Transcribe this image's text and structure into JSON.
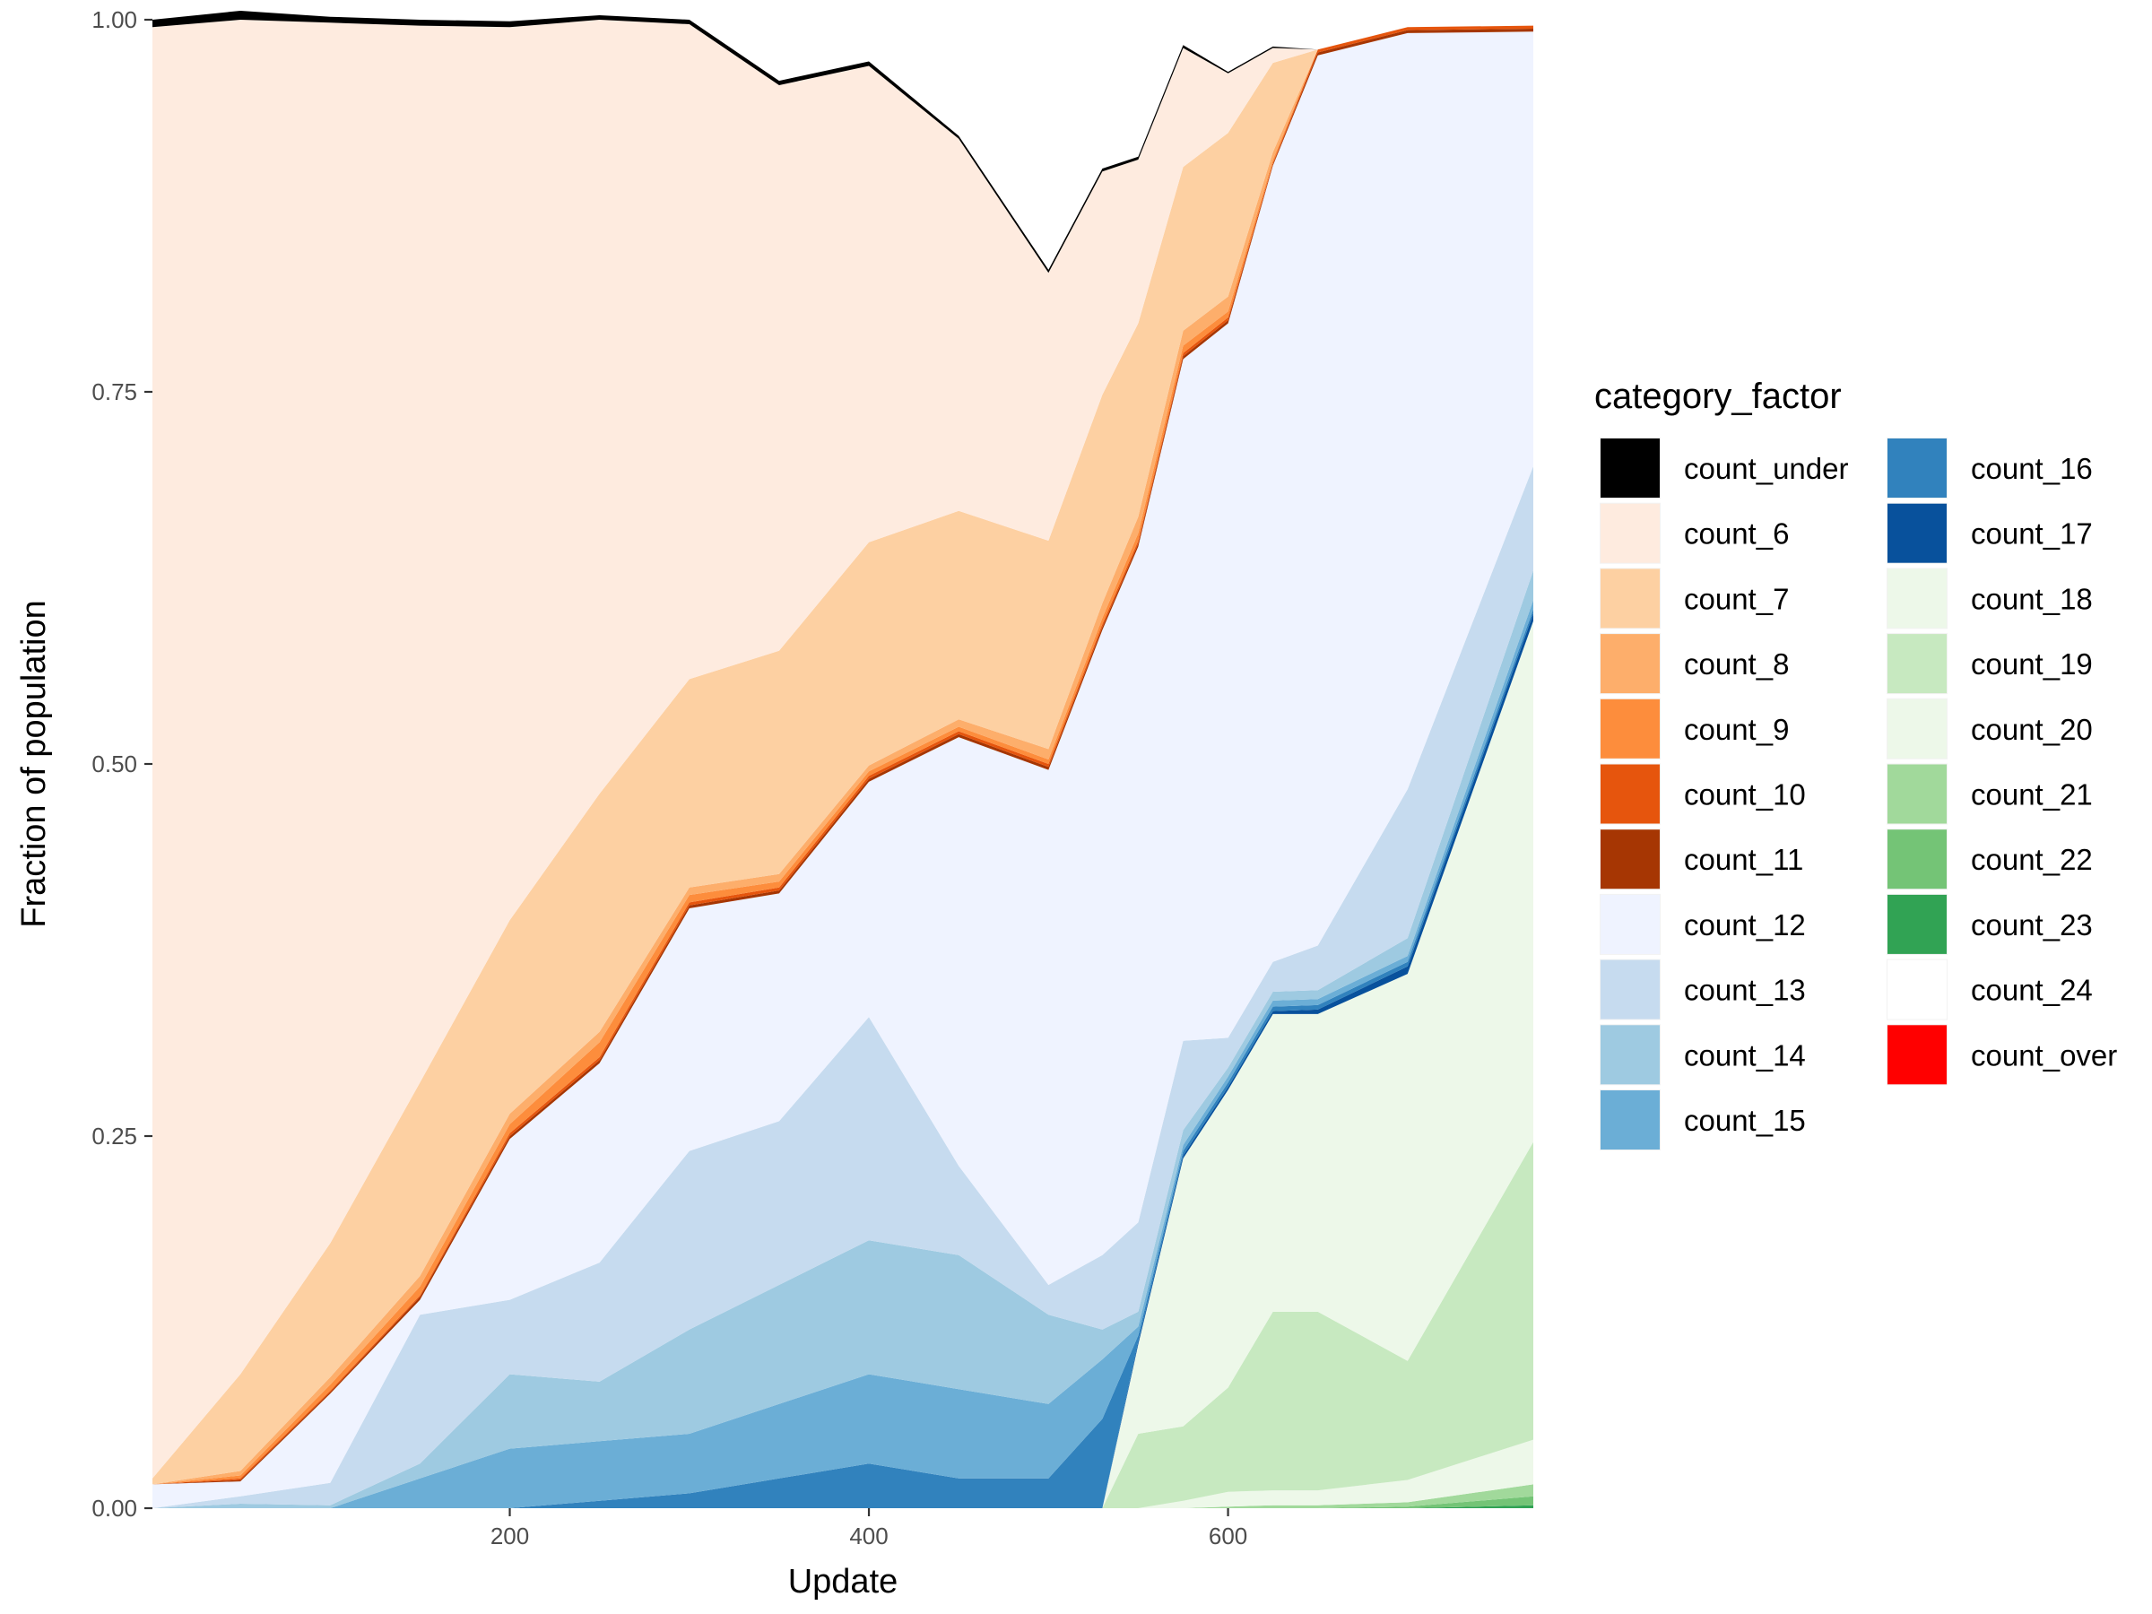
{
  "chart_data": {
    "type": "area",
    "stacked": true,
    "normalized": true,
    "xlabel": "Update",
    "ylabel": "Fraction of population",
    "xlim": [
      1,
      770
    ],
    "ylim": [
      0,
      1
    ],
    "x_ticks": [
      200,
      400,
      600
    ],
    "y_ticks": [
      0.0,
      0.25,
      0.5,
      0.75,
      1.0
    ],
    "y_tick_labels": [
      "0.00",
      "0.25",
      "0.50",
      "0.75",
      "1.00"
    ],
    "grid": false,
    "legend": {
      "title": "category_factor",
      "placement": "right",
      "columns": 2
    },
    "x": [
      1,
      50,
      100,
      150,
      200,
      250,
      300,
      350,
      400,
      450,
      500,
      530,
      550,
      575,
      600,
      625,
      650,
      700,
      770
    ],
    "series": [
      {
        "name": "count_under",
        "color": "#000000",
        "values": [
          0.005,
          0.006,
          0.004,
          0.004,
          0.004,
          0.003,
          0.003,
          0.003,
          0.003,
          0.002,
          0.002,
          0.002,
          0.002,
          0.002,
          0.001,
          0.001,
          0,
          0,
          0
        ]
      },
      {
        "name": "count_6",
        "color": "#FEEBDF",
        "values": [
          0.975,
          0.91,
          0.82,
          0.71,
          0.6,
          0.52,
          0.44,
          0.38,
          0.32,
          0.25,
          0.18,
          0.15,
          0.11,
          0.08,
          0.04,
          0.01,
          0,
          0,
          0
        ]
      },
      {
        "name": "count_7",
        "color": "#FDD0A2",
        "values": [
          0.004,
          0.065,
          0.09,
          0.13,
          0.13,
          0.16,
          0.14,
          0.15,
          0.15,
          0.14,
          0.14,
          0.14,
          0.13,
          0.11,
          0.11,
          0.06,
          0,
          0,
          0
        ]
      },
      {
        "name": "count_8",
        "color": "#FDAE6B",
        "values": [
          0,
          0.003,
          0.005,
          0.007,
          0.007,
          0.007,
          0.005,
          0.005,
          0.004,
          0.005,
          0.007,
          0.01,
          0.011,
          0.01,
          0.01,
          0.005,
          0,
          0,
          0
        ]
      },
      {
        "name": "count_9",
        "color": "#FD8D3C",
        "values": [
          0,
          0.002,
          0.004,
          0.006,
          0.006,
          0.01,
          0.005,
          0.004,
          0.003,
          0.003,
          0.003,
          0.004,
          0.005,
          0.005,
          0.004,
          0.002,
          0,
          0,
          0
        ]
      },
      {
        "name": "count_10",
        "color": "#E6550D",
        "values": [
          0,
          0.001,
          0.001,
          0.001,
          0.002,
          0.002,
          0.002,
          0.002,
          0.002,
          0.002,
          0.002,
          0.002,
          0.002,
          0.002,
          0.002,
          0.001,
          0.002,
          0.002,
          0.002
        ]
      },
      {
        "name": "count_11",
        "color": "#A63603",
        "values": [
          0,
          0.001,
          0.001,
          0.002,
          0.002,
          0.002,
          0.002,
          0.002,
          0.002,
          0.002,
          0.002,
          0.002,
          0.002,
          0.002,
          0.002,
          0.001,
          0.002,
          0.002,
          0.002
        ]
      },
      {
        "name": "count_12",
        "color": "#EFF3FF",
        "values": [
          0.016,
          0.01,
          0.06,
          0.01,
          0.108,
          0.134,
          0.163,
          0.153,
          0.158,
          0.288,
          0.346,
          0.42,
          0.454,
          0.458,
          0.48,
          0.535,
          0.598,
          0.508,
          0.292
        ]
      },
      {
        "name": "count_13",
        "color": "#C6DBEF",
        "values": [
          0,
          0.005,
          0.015,
          0.1,
          0.05,
          0.08,
          0.12,
          0.11,
          0.15,
          0.06,
          0.02,
          0.05,
          0.06,
          0.06,
          0.02,
          0.02,
          0.03,
          0.1,
          0.07
        ]
      },
      {
        "name": "count_14",
        "color": "#9ECAE1",
        "values": [
          0,
          0.003,
          0.002,
          0.01,
          0.05,
          0.04,
          0.07,
          0.08,
          0.09,
          0.09,
          0.06,
          0.02,
          0.01,
          0.01,
          0.006,
          0.006,
          0.006,
          0.012,
          0.02
        ]
      },
      {
        "name": "count_15",
        "color": "#6BAED6",
        "values": [
          0,
          0,
          0,
          0.02,
          0.04,
          0.04,
          0.04,
          0.05,
          0.06,
          0.06,
          0.05,
          0.04,
          0.006,
          0.004,
          0.004,
          0.004,
          0.004,
          0.004,
          0.006
        ]
      },
      {
        "name": "count_16",
        "color": "#3182BD",
        "values": [
          0,
          0,
          0,
          0,
          0,
          0.005,
          0.01,
          0.02,
          0.03,
          0.02,
          0.02,
          0.06,
          0.004,
          0.003,
          0.003,
          0.003,
          0.003,
          0.003,
          0.003
        ]
      },
      {
        "name": "count_17",
        "color": "#08519C",
        "values": [
          0,
          0,
          0,
          0,
          0,
          0,
          0,
          0,
          0,
          0,
          0,
          0,
          0.002,
          0.002,
          0.002,
          0.002,
          0.003,
          0.005,
          0.005
        ]
      },
      {
        "name": "count_18",
        "color": "#EDF8E9",
        "values": [
          0,
          0,
          0,
          0,
          0,
          0,
          0,
          0,
          0,
          0,
          0,
          0,
          0.06,
          0.18,
          0.2,
          0.2,
          0.2,
          0.26,
          0.35
        ]
      },
      {
        "name": "count_19",
        "color": "#C7E9C0",
        "values": [
          0,
          0,
          0,
          0,
          0,
          0,
          0,
          0,
          0,
          0,
          0,
          0,
          0.05,
          0.05,
          0.07,
          0.12,
          0.12,
          0.08,
          0.2
        ]
      },
      {
        "name": "count_20",
        "color": "#EDF8E9",
        "values": [
          0,
          0,
          0,
          0,
          0,
          0,
          0,
          0,
          0,
          0,
          0,
          0,
          0,
          0.005,
          0.01,
          0.01,
          0.01,
          0.015,
          0.03
        ]
      },
      {
        "name": "count_21",
        "color": "#A1D99B",
        "values": [
          0,
          0,
          0,
          0,
          0,
          0,
          0,
          0,
          0,
          0,
          0,
          0,
          0,
          0,
          0.001,
          0.002,
          0.002,
          0.003,
          0.008
        ]
      },
      {
        "name": "count_22",
        "color": "#74C476",
        "values": [
          0,
          0,
          0,
          0,
          0,
          0,
          0,
          0,
          0,
          0,
          0,
          0,
          0,
          0,
          0,
          0,
          0,
          0.001,
          0.006
        ]
      },
      {
        "name": "count_23",
        "color": "#31A354",
        "values": [
          0,
          0,
          0,
          0,
          0,
          0,
          0,
          0,
          0,
          0,
          0,
          0,
          0,
          0,
          0,
          0,
          0,
          0,
          0.002
        ]
      },
      {
        "name": "count_24",
        "color": "#FFFFFF",
        "values": [
          0,
          0,
          0,
          0,
          0,
          0,
          0,
          0,
          0,
          0,
          0,
          0,
          0,
          0,
          0,
          0,
          0,
          0,
          0
        ]
      },
      {
        "name": "count_over",
        "color": "#FF0000",
        "values": [
          0,
          0,
          0,
          0,
          0,
          0,
          0,
          0,
          0,
          0,
          0,
          0,
          0,
          0,
          0,
          0,
          0,
          0,
          0
        ]
      }
    ]
  }
}
